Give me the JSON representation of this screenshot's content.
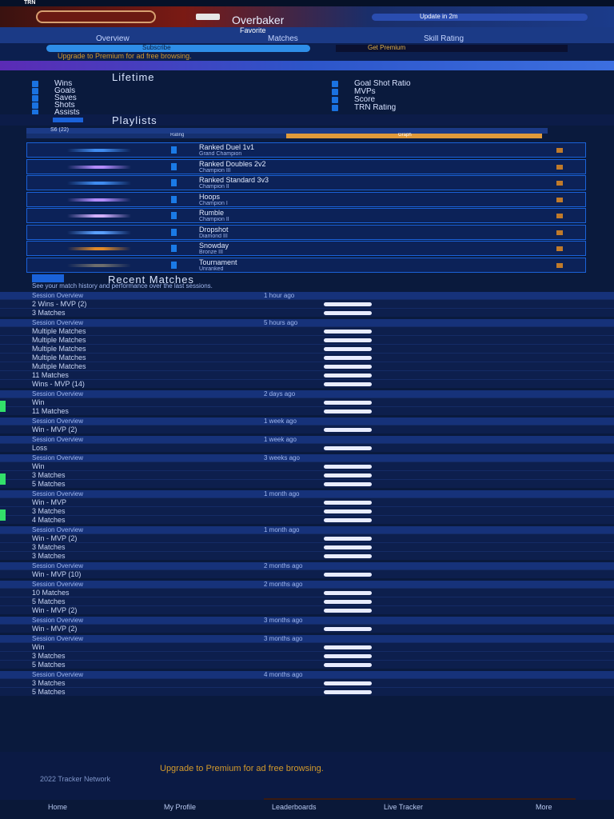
{
  "topbar": {
    "logo": "TRN",
    "status": "Update in 2m"
  },
  "hero": {
    "username": "Overbaker",
    "favorite_label": "Favorite"
  },
  "tabs": [
    {
      "label": "Overview"
    },
    {
      "label": "Matches"
    },
    {
      "label": "Skill Rating"
    }
  ],
  "promo": {
    "button_left": "Subscribe",
    "button_right": "Get Premium",
    "text": "Upgrade to Premium for ad free browsing."
  },
  "sections": {
    "lifetime": "Lifetime",
    "playlists": "Playlists",
    "recent_matches": "Recent Matches"
  },
  "lifetime_left": [
    {
      "label": "Wins"
    },
    {
      "label": "Goals"
    },
    {
      "label": "Saves"
    },
    {
      "label": "Shots"
    },
    {
      "label": "Assists"
    }
  ],
  "lifetime_right": [
    {
      "label": "Goal Shot Ratio"
    },
    {
      "label": "MVPs"
    },
    {
      "label": "Score"
    },
    {
      "label": "TRN Rating"
    }
  ],
  "season_select": {
    "value": "S6 (22)"
  },
  "playlist_toggle": {
    "left": "Rating",
    "right": "Graph"
  },
  "playlists": [
    {
      "name": "Ranked Duel 1v1",
      "sub": "Grand Champion",
      "color": "#3f8cf0"
    },
    {
      "name": "Ranked Doubles 2v2",
      "sub": "Champion III",
      "color": "#b58cff"
    },
    {
      "name": "Ranked Standard 3v3",
      "sub": "Champion II",
      "color": "#3f8cf0"
    },
    {
      "name": "Hoops",
      "sub": "Champion I",
      "color": "#b58cff"
    },
    {
      "name": "Rumble",
      "sub": "Champion II",
      "color": "#d3b0ff"
    },
    {
      "name": "Dropshot",
      "sub": "Diamond III",
      "color": "#5aa0ff"
    },
    {
      "name": "Snowday",
      "sub": "Bronze III",
      "color": "#e08a2a"
    },
    {
      "name": "Tournament",
      "sub": "Unranked",
      "color": "#6d6d6d"
    }
  ],
  "recent_intro": "See your match history and performance over the last sessions.",
  "sessions": [
    {
      "header": "Session Overview",
      "age": "1 hour ago",
      "rows": [
        "2 Wins - MVP (2)",
        "3 Matches"
      ]
    },
    {
      "header": "Session Overview",
      "age": "5 hours ago",
      "rows": [
        "Multiple Matches",
        "Multiple Matches",
        "Multiple Matches",
        "Multiple Matches",
        "Multiple Matches",
        "11 Matches",
        "Wins - MVP (14)"
      ]
    },
    {
      "header": "Session Overview",
      "age": "2 days ago",
      "rows": [
        "Win",
        "11 Matches"
      ]
    },
    {
      "header": "Session Overview",
      "age": "1 week ago",
      "rows": [
        "Win - MVP (2)"
      ]
    },
    {
      "header": "Session Overview",
      "age": "1 week ago",
      "rows": [
        "Loss"
      ]
    },
    {
      "header": "Session Overview",
      "age": "3 weeks ago",
      "rows": [
        "Win",
        "3 Matches",
        "5 Matches"
      ]
    },
    {
      "header": "Session Overview",
      "age": "1 month ago",
      "rows": [
        "Win - MVP",
        "3 Matches",
        "4 Matches"
      ]
    },
    {
      "header": "Session Overview",
      "age": "1 month ago",
      "rows": [
        "Win - MVP (2)",
        "3 Matches",
        "3 Matches"
      ]
    },
    {
      "header": "Session Overview",
      "age": "2 months ago",
      "rows": [
        "Win - MVP (10)"
      ]
    },
    {
      "header": "Session Overview",
      "age": "2 months ago",
      "rows": [
        "10 Matches",
        "5 Matches",
        "Win - MVP (2)"
      ]
    },
    {
      "header": "Session Overview",
      "age": "3 months ago",
      "rows": [
        "Win - MVP (2)"
      ]
    },
    {
      "header": "Session Overview",
      "age": "3 months ago",
      "rows": [
        "Win",
        "3 Matches",
        "5 Matches"
      ]
    },
    {
      "header": "Session Overview",
      "age": "4 months ago",
      "rows": [
        "3 Matches",
        "5 Matches"
      ]
    }
  ],
  "footer": {
    "upgrade": "Upgrade to Premium for ad free browsing.",
    "copyright": "2022 Tracker Network"
  },
  "bottomnav": [
    {
      "label": "Home"
    },
    {
      "label": "My Profile"
    },
    {
      "label": "Leaderboards"
    },
    {
      "label": "Live Tracker"
    },
    {
      "label": "More"
    }
  ]
}
